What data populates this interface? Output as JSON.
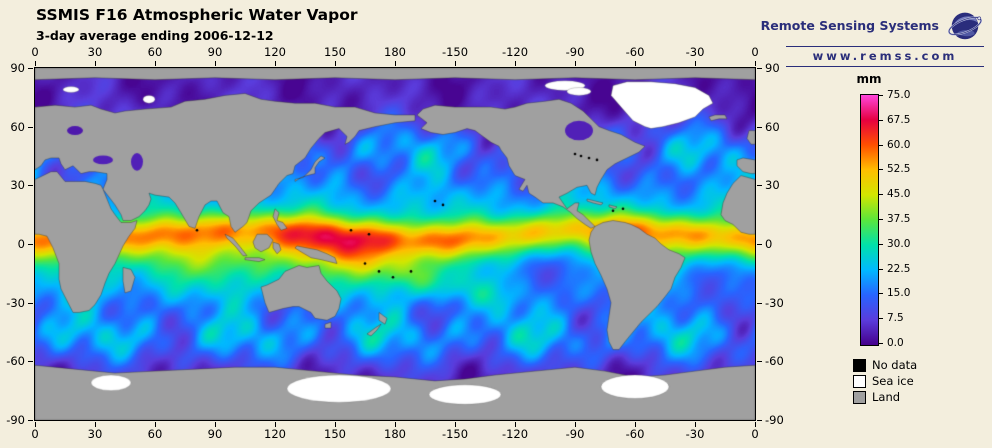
{
  "header": {
    "title": "SSMIS F16 Atmospheric Water Vapor",
    "subtitle": "3-day average ending 2006-12-12"
  },
  "branding": {
    "name": "Remote Sensing Systems",
    "url": "www.remss.com"
  },
  "map": {
    "lon_ticks": [
      "0",
      "30",
      "60",
      "90",
      "120",
      "150",
      "180",
      "-150",
      "-120",
      "-90",
      "-60",
      "-30",
      "0"
    ],
    "lat_ticks": [
      "90",
      "60",
      "30",
      "0",
      "-30",
      "-60",
      "-90"
    ]
  },
  "colorbar": {
    "unit": "mm",
    "min": 0,
    "max": 75,
    "tick_labels": [
      "75.0",
      "67.5",
      "60.0",
      "52.5",
      "45.0",
      "37.5",
      "30.0",
      "22.5",
      "15.0",
      "7.5",
      "0.0"
    ],
    "stops": [
      [
        0,
        "#46008c"
      ],
      [
        7.5,
        "#5a3cdc"
      ],
      [
        15,
        "#2864ff"
      ],
      [
        22.5,
        "#00b9ff"
      ],
      [
        30,
        "#00e1aa"
      ],
      [
        37.5,
        "#5ae63c"
      ],
      [
        45,
        "#d2e600"
      ],
      [
        52.5,
        "#ffbe00"
      ],
      [
        60,
        "#ff5000"
      ],
      [
        67.5,
        "#e60040"
      ],
      [
        75,
        "#ff46dc"
      ]
    ]
  },
  "legend": {
    "items": [
      {
        "label": "No data",
        "color": "#000000"
      },
      {
        "label": "Sea ice",
        "color": "#ffffff"
      },
      {
        "label": "Land",
        "color": "#a0a0a0"
      }
    ]
  },
  "chart_data": {
    "type": "heatmap",
    "title": "SSMIS F16 Atmospheric Water Vapor",
    "subtitle": "3-day average ending 2006-12-12",
    "units": "mm",
    "value_range": [
      0,
      75
    ],
    "colorbar_tick_values": [
      75,
      67.5,
      60,
      52.5,
      45,
      37.5,
      30,
      22.5,
      15,
      7.5,
      0
    ],
    "lon_tick_labels": [
      "0",
      "30",
      "60",
      "90",
      "120",
      "150",
      "180",
      "-150",
      "-120",
      "-90",
      "-60",
      "-30",
      "0"
    ],
    "lat_tick_labels": [
      "90",
      "60",
      "30",
      "0",
      "-30",
      "-60",
      "-90"
    ],
    "legend_categories": [
      "No data",
      "Sea ice",
      "Land"
    ],
    "description_of_field": "Global 3-day average water vapor: high values (45-70 mm, red/orange) along the tropics and west Pacific warm pool, mid values (15-35 mm, green/cyan) in subtropics and storm tracks, low values (0-10 mm, purple) at high latitudes; land gray, sea ice white, missing data black."
  }
}
